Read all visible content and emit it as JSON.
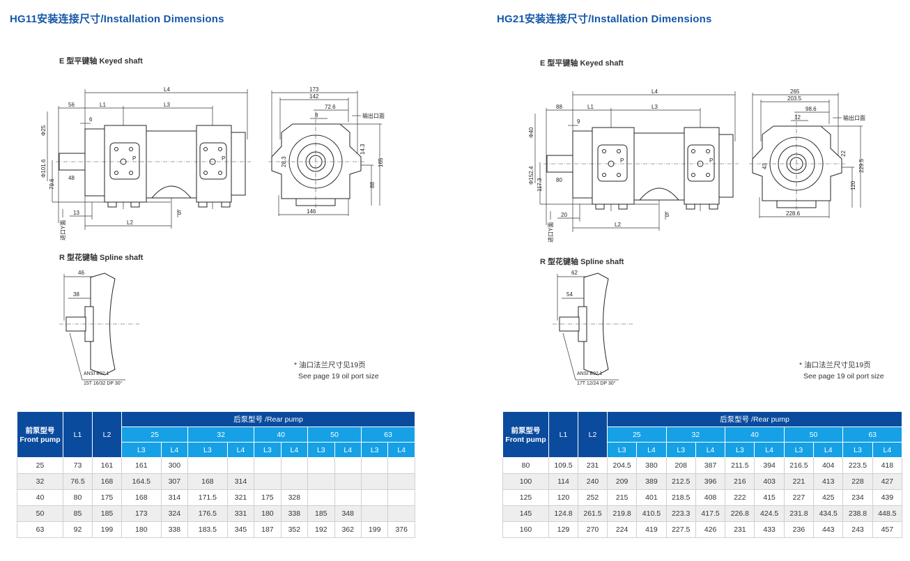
{
  "left": {
    "title": "HG11安装连接尺寸/Installation Dimensions",
    "keyed_label": "E 型平键轴 Keyed shaft",
    "spline_label": "R 型花键轴 Spline shaft",
    "note_cn": "* 油口法兰尺寸见19页",
    "note_en": "See page 19 oil port size",
    "side": {
      "L4": "L4",
      "d56": "56",
      "L1": "L1",
      "L3": "L3",
      "d6": "6",
      "phi25": "Φ25",
      "phi101": "Φ101.6",
      "d796": "79.6",
      "d48": "48",
      "d13": "13",
      "L2": "L2",
      "S": "S",
      "inlet": "进口Y面",
      "P1": "P",
      "P2": "P"
    },
    "front": {
      "d173": "173",
      "d142": "142",
      "d726": "72.6",
      "d8": "8",
      "outlet": "输出口面",
      "d143": "14.3",
      "d165": "165",
      "d88": "88",
      "d146": "146",
      "d283": "28.3"
    },
    "spline": {
      "d46": "46",
      "d38": "38",
      "ansi": "ANSI B92.1",
      "spec": "15T 16/32 DP 30°"
    },
    "table": {
      "front_pump": "前泵型号 Front pump",
      "rear_pump": "后泵型号 /Rear pump",
      "l1": "L1",
      "l2": "L2",
      "l3": "L3",
      "l4": "L4",
      "rear_sizes": [
        "25",
        "32",
        "40",
        "50",
        "63"
      ],
      "rows": [
        [
          "25",
          "73",
          "161",
          "161",
          "300",
          "",
          "",
          "",
          "",
          "",
          "",
          "",
          ""
        ],
        [
          "32",
          "76.5",
          "168",
          "164.5",
          "307",
          "168",
          "314",
          "",
          "",
          "",
          "",
          "",
          ""
        ],
        [
          "40",
          "80",
          "175",
          "168",
          "314",
          "171.5",
          "321",
          "175",
          "328",
          "",
          "",
          "",
          ""
        ],
        [
          "50",
          "85",
          "185",
          "173",
          "324",
          "176.5",
          "331",
          "180",
          "338",
          "185",
          "348",
          "",
          ""
        ],
        [
          "63",
          "92",
          "199",
          "180",
          "338",
          "183.5",
          "345",
          "187",
          "352",
          "192",
          "362",
          "199",
          "376"
        ]
      ]
    }
  },
  "right": {
    "title": "HG21安装连接尺寸/Installation Dimensions",
    "keyed_label": "E 型平键轴 Keyed shaft",
    "spline_label": "R 型花键轴 Spline shaft",
    "note_cn": "* 油口法兰尺寸见19页",
    "note_en": "See page 19 oil port size",
    "side": {
      "L4": "L4",
      "d56": "88",
      "L1": "L1",
      "L3": "L3",
      "d6": "9",
      "phi25": "Φ40",
      "phi101": "Φ152.4",
      "d796": "117.3",
      "d48": "80",
      "d13": "20",
      "L2": "L2",
      "S": "S",
      "inlet": "进口Y面",
      "P1": "P",
      "P2": "P"
    },
    "front": {
      "d173": "265",
      "d142": "203.5",
      "d726": "98.6",
      "d8": "12",
      "outlet": "输出口面",
      "d143": "22",
      "d165": "229.5",
      "d88": "120",
      "d146": "228.6",
      "d283": "43"
    },
    "spline": {
      "d46": "62",
      "d38": "54",
      "ansi": "ANSI B92.1",
      "spec": "17T 12/24 DP 30°"
    },
    "table": {
      "front_pump": "前泵型号 Front pump",
      "rear_pump": "后泵型号 /Rear pump",
      "l1": "L1",
      "l2": "L2",
      "l3": "L3",
      "l4": "L4",
      "rear_sizes": [
        "25",
        "32",
        "40",
        "50",
        "63"
      ],
      "rows": [
        [
          "80",
          "109.5",
          "231",
          "204.5",
          "380",
          "208",
          "387",
          "211.5",
          "394",
          "216.5",
          "404",
          "223.5",
          "418"
        ],
        [
          "100",
          "114",
          "240",
          "209",
          "389",
          "212.5",
          "396",
          "216",
          "403",
          "221",
          "413",
          "228",
          "427"
        ],
        [
          "125",
          "120",
          "252",
          "215",
          "401",
          "218.5",
          "408",
          "222",
          "415",
          "227",
          "425",
          "234",
          "439"
        ],
        [
          "145",
          "124.8",
          "261.5",
          "219.8",
          "410.5",
          "223.3",
          "417.5",
          "226.8",
          "424.5",
          "231.8",
          "434.5",
          "238.8",
          "448.5"
        ],
        [
          "160",
          "129",
          "270",
          "224",
          "419",
          "227.5",
          "426",
          "231",
          "433",
          "236",
          "443",
          "243",
          "457"
        ]
      ]
    }
  },
  "colors": {
    "title": "#1557a6",
    "header_dark": "#0b4b9d",
    "header_light": "#16a0e6",
    "row_alt": "#eeeeee"
  }
}
